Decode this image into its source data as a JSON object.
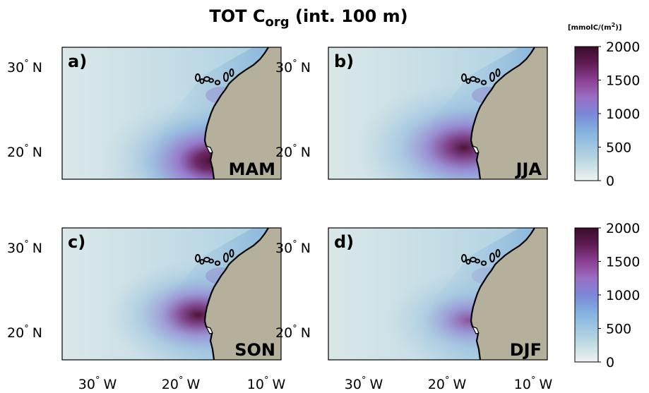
{
  "figure": {
    "title_main": "TOT C",
    "title_sub": "org",
    "title_rest": " (int. 100 m)"
  },
  "axes": {
    "lat_ticks": [
      {
        "deg": 30,
        "hemi": "N"
      },
      {
        "deg": 20,
        "hemi": "N"
      }
    ],
    "lon_ticks": [
      {
        "deg": 30,
        "hemi": "W"
      },
      {
        "deg": 20,
        "hemi": "W"
      },
      {
        "deg": 10,
        "hemi": "W"
      }
    ],
    "degree_symbol": "°"
  },
  "panels": [
    {
      "letter": "a)",
      "season": "MAM"
    },
    {
      "letter": "b)",
      "season": "JJA"
    },
    {
      "letter": "c)",
      "season": "SON"
    },
    {
      "letter": "d)",
      "season": "DJF"
    }
  ],
  "colorbars": [
    {
      "unit_main": "[mmolC/(m",
      "unit_sup": "2",
      "unit_end": ")]",
      "ticks": [
        "2000",
        "1500",
        "1000",
        "500",
        "0"
      ]
    },
    {
      "unit_main": "",
      "unit_sup": "",
      "unit_end": "",
      "ticks": [
        "2000",
        "1500",
        "1000",
        "500",
        "0"
      ]
    }
  ],
  "colors": {
    "land": "#b4b09b",
    "ocean_low": "#dde9e8",
    "mid_blue": "#7fb2de",
    "upwelling_high": "#3e0f2d"
  }
}
